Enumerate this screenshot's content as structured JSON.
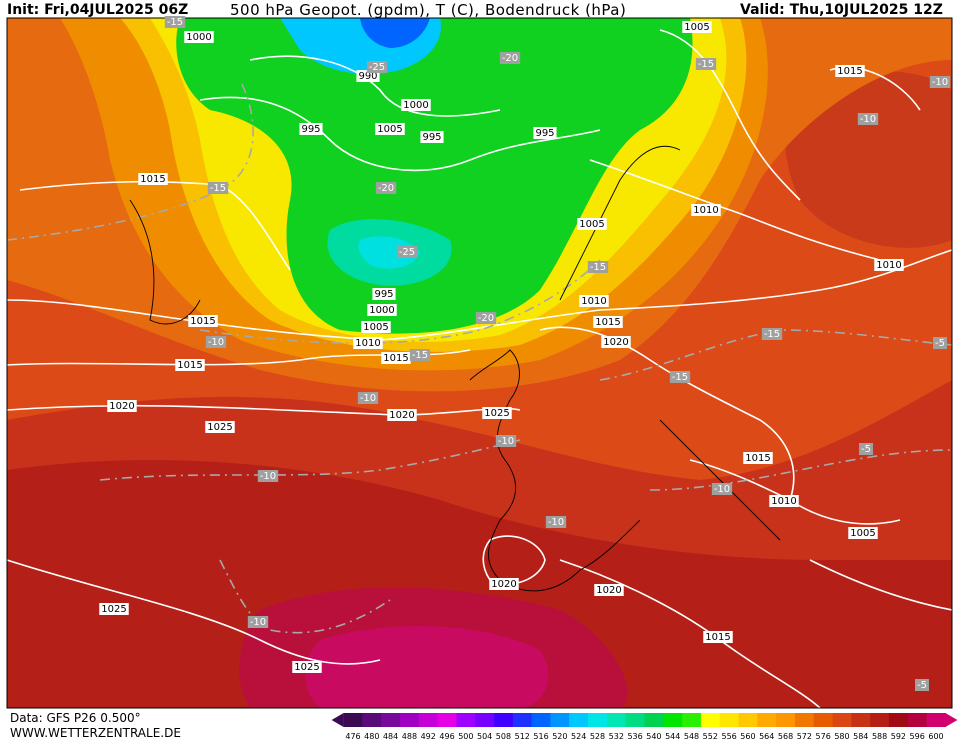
{
  "header": {
    "init": "Init: Fri,04JUL2025 06Z",
    "title": "500 hPa Geopot. (gpdm), T (C), Bodendruck (hPa)",
    "valid": "Valid: Thu,10JUL2025 12Z"
  },
  "footer": {
    "data": "Data: GFS P26 0.500°",
    "site": "WWW.WETTERZENTRALE.DE"
  },
  "colorbar": {
    "values": [
      476,
      480,
      484,
      488,
      492,
      496,
      500,
      504,
      508,
      512,
      516,
      520,
      524,
      528,
      532,
      536,
      540,
      544,
      548,
      552,
      556,
      560,
      564,
      568,
      572,
      576,
      580,
      584,
      588,
      592,
      596,
      600
    ],
    "colors": [
      "#3c0a50",
      "#5a0a78",
      "#78089a",
      "#a000c0",
      "#c800d8",
      "#e600e6",
      "#a000ff",
      "#7800ff",
      "#4000ff",
      "#2030ff",
      "#0064ff",
      "#0096ff",
      "#00c8ff",
      "#00e6e6",
      "#00e6b4",
      "#00dc82",
      "#00d250",
      "#00e600",
      "#28f000",
      "#ffff00",
      "#ffe600",
      "#ffc800",
      "#ffaa00",
      "#ff9600",
      "#f07800",
      "#e65a00",
      "#dc4614",
      "#c83214",
      "#b41e14",
      "#a00a14",
      "#b4003c",
      "#d2006e"
    ]
  },
  "map": {
    "pressure_labels": [
      "1000",
      "990",
      "1000",
      "995",
      "1005",
      "995",
      "995",
      "1015",
      "1005",
      "1010",
      "1015",
      "1005",
      "1010",
      "1010",
      "1015",
      "1020",
      "995",
      "1000",
      "1005",
      "1010",
      "1015",
      "1015",
      "1015",
      "1020",
      "1020",
      "1025",
      "1025",
      "1015",
      "1010",
      "1005",
      "1020",
      "1020",
      "1025",
      "1015",
      "1025"
    ],
    "temperature_labels": [
      "-15",
      "-25",
      "-20",
      "-15",
      "-10",
      "-10",
      "-15",
      "-20",
      "-25",
      "-15",
      "-20",
      "-10",
      "-15",
      "-15",
      "-5",
      "-10",
      "-15",
      "-10",
      "-10",
      "-5",
      "-10",
      "-10",
      "-10",
      "-5"
    ]
  }
}
